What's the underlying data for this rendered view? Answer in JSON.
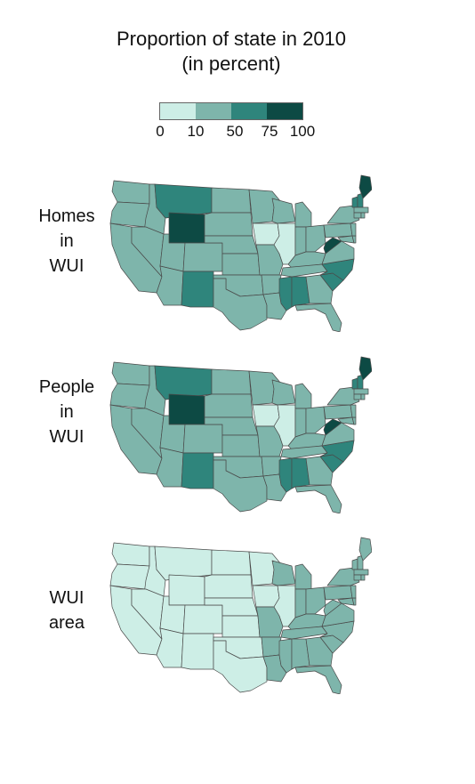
{
  "title_line1": "Proportion of state in 2010",
  "title_line2": "(in percent)",
  "legend": {
    "bins": [
      {
        "color": "#cdeee6"
      },
      {
        "color": "#7eb5ab"
      },
      {
        "color": "#2f857c"
      },
      {
        "color": "#0d4a44"
      }
    ],
    "ticks": [
      "0",
      "10",
      "50",
      "75",
      "100"
    ]
  },
  "maps": [
    {
      "label": [
        "Homes",
        "in",
        "WUI"
      ],
      "default_class": 1,
      "states": {
        "WY": 3,
        "ME": 3,
        "WV": 3,
        "MT": 2,
        "NM": 2,
        "NC": 2,
        "SC": 2,
        "MS": 2,
        "AL": 2,
        "NH": 2,
        "VT": 2,
        "IA": 0,
        "IL": 0
      }
    },
    {
      "label": [
        "People",
        "in",
        "WUI"
      ],
      "default_class": 1,
      "states": {
        "WY": 3,
        "ME": 3,
        "WV": 3,
        "MT": 2,
        "NM": 2,
        "NC": 2,
        "SC": 2,
        "MS": 2,
        "AL": 2,
        "NH": 2,
        "VT": 2,
        "IA": 0,
        "IL": 0
      }
    },
    {
      "label": [
        "WUI",
        "area"
      ],
      "default_class": 0,
      "states": {
        "AR": 1,
        "LA": 1,
        "MO": 1,
        "KY": 1,
        "TN": 1,
        "MS": 1,
        "AL": 1,
        "GA": 1,
        "FL": 1,
        "SC": 1,
        "NC": 1,
        "VA": 1,
        "WV": 1,
        "OH": 1,
        "IN": 1,
        "MI": 1,
        "WI": 1,
        "PA": 1,
        "NY": 1,
        "VT": 1,
        "NH": 1,
        "ME": 1,
        "MA": 1,
        "CT": 1,
        "RI": 1,
        "NJ": 1,
        "MD": 1,
        "DE": 1
      }
    }
  ]
}
